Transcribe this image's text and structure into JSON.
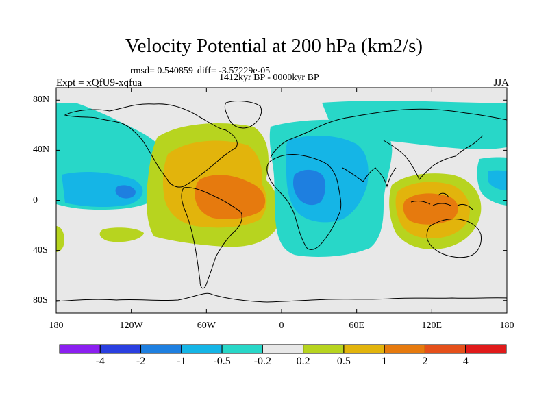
{
  "header": {
    "title": "Velocity Potential at 200 hPa (km2/s)",
    "rmsd": "rmsd= 0.540859",
    "diff": "diff= -3.57229e-05",
    "period": "1412kyr BP - 0000kyr BP",
    "expt": "Expt = xQfU9-xqfua",
    "season": "JJA"
  },
  "axes": {
    "lat_ticks": [
      {
        "value": 80,
        "label": "80N"
      },
      {
        "value": 40,
        "label": "40N"
      },
      {
        "value": 0,
        "label": "0"
      },
      {
        "value": -40,
        "label": "40S"
      },
      {
        "value": -80,
        "label": "80S"
      }
    ],
    "lon_ticks": [
      {
        "value": -180,
        "label": "180"
      },
      {
        "value": -120,
        "label": "120W"
      },
      {
        "value": -60,
        "label": "60W"
      },
      {
        "value": 0,
        "label": "0"
      },
      {
        "value": 60,
        "label": "60E"
      },
      {
        "value": 120,
        "label": "120E"
      },
      {
        "value": 180,
        "label": "180"
      }
    ],
    "lat_range": [
      -90,
      90
    ],
    "lon_range": [
      -180,
      180
    ]
  },
  "colorbar": {
    "levels": [
      "-4",
      "-2",
      "-1",
      "-0.5",
      "-0.2",
      "0.2",
      "0.5",
      "1",
      "2",
      "4"
    ],
    "colors": [
      "#8b1ff0",
      "#2a3fe0",
      "#1e7fe0",
      "#15b5e6",
      "#28d7c8",
      "#e8e8e8",
      "#b7d41f",
      "#e2b40c",
      "#e67a0e",
      "#e5501a",
      "#e01a1a"
    ]
  },
  "map_colors": {
    "background": "#e8e8e8",
    "coast": "#000000"
  }
}
